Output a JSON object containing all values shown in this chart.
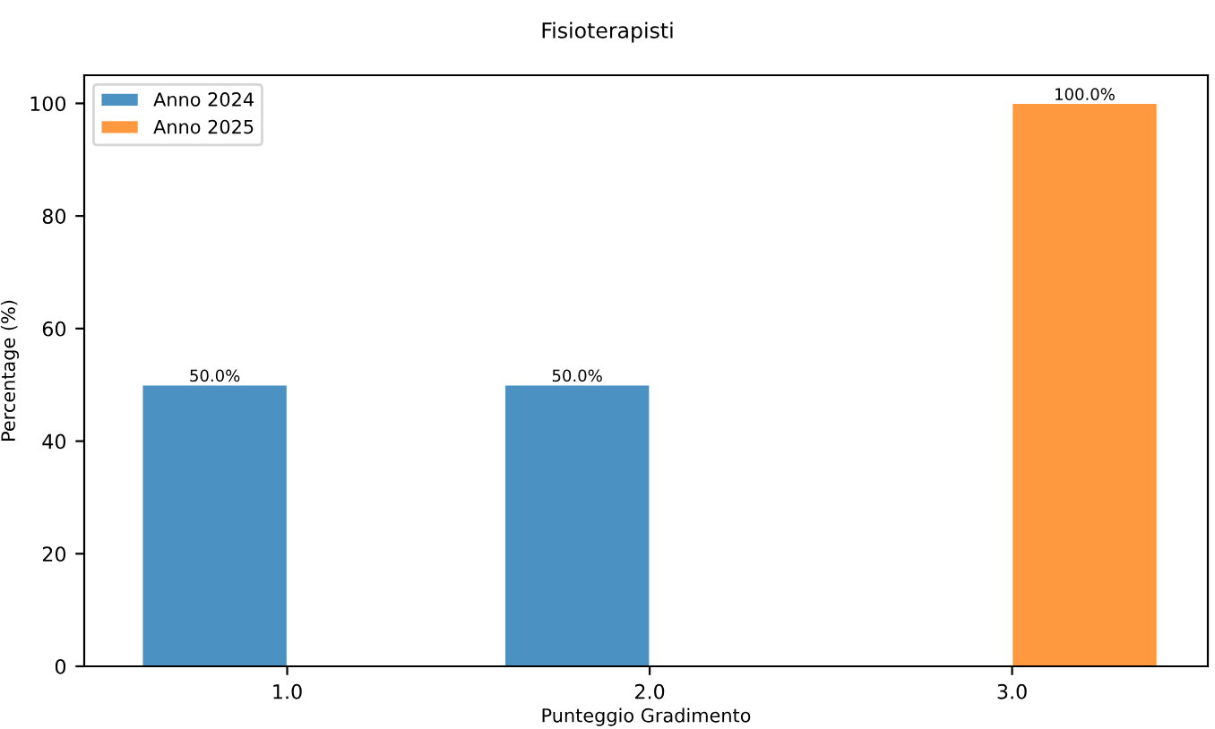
{
  "chart_data": {
    "type": "bar",
    "title": "Fisioterapisti",
    "xlabel": "Punteggio Gradimento",
    "ylabel": "Percentage (%)",
    "categories": [
      "1.0",
      "2.0",
      "3.0"
    ],
    "series": [
      {
        "name": "Anno 2024",
        "color": "#4b92c3",
        "values": [
          50,
          50,
          null
        ],
        "value_labels": [
          "50.0%",
          "50.0%",
          null
        ]
      },
      {
        "name": "Anno 2025",
        "color": "#ff9940",
        "values": [
          null,
          null,
          100
        ],
        "value_labels": [
          null,
          null,
          "100.0%"
        ]
      }
    ],
    "ylim": [
      0,
      105
    ],
    "yticks": [
      0,
      20,
      40,
      60,
      80,
      100
    ],
    "grid": false,
    "legend": "top left"
  }
}
